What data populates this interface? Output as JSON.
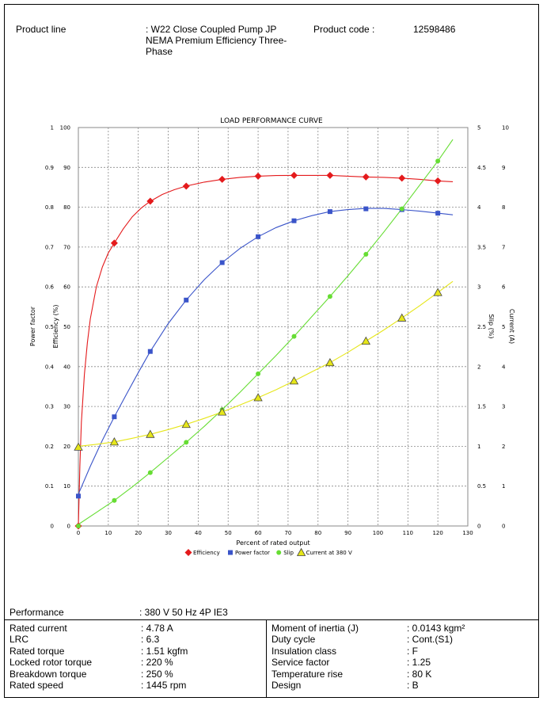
{
  "header": {
    "product_line_label": "Product line",
    "product_line_value": ": W22 Close Coupled Pump JP NEMA Premium Efficiency Three-Phase",
    "product_line_lines": [
      ": W22 Close Coupled Pump JP",
      "NEMA Premium Efficiency Three-",
      "Phase"
    ],
    "product_code_label": "Product code :",
    "product_code_value": "12598486"
  },
  "chart_data": {
    "type": "line",
    "title": "LOAD PERFORMANCE CURVE",
    "xlabel": "Percent of rated output",
    "xlim": [
      0,
      130
    ],
    "x_ticks": [
      "0",
      "10",
      "20",
      "30",
      "40",
      "50",
      "60",
      "70",
      "80",
      "90",
      "100",
      "110",
      "120",
      "130"
    ],
    "axes": {
      "power_factor": {
        "label": "Power factor",
        "range": [
          0,
          1
        ],
        "ticks": [
          "0",
          "0.1",
          "0.2",
          "0.3",
          "0.4",
          "0.5",
          "0.6",
          "0.7",
          "0.8",
          "0.9",
          "1"
        ]
      },
      "efficiency": {
        "label": "Efficiency (%)",
        "range": [
          0,
          100
        ],
        "ticks": [
          "0",
          "10",
          "20",
          "30",
          "40",
          "50",
          "60",
          "70",
          "80",
          "90",
          "100"
        ]
      },
      "slip": {
        "label": "Slip (%)",
        "range": [
          0,
          5
        ],
        "ticks": [
          "0",
          "0.5",
          "1",
          "1.5",
          "2",
          "2.5",
          "3",
          "3.5",
          "4",
          "4.5",
          "5"
        ]
      },
      "current": {
        "label": "Current (A)",
        "range": [
          0,
          10
        ],
        "ticks": [
          "0",
          "1",
          "2",
          "3",
          "4",
          "5",
          "6",
          "7",
          "8",
          "9",
          "10"
        ]
      }
    },
    "grid": true,
    "legend_position": "bottom",
    "series": [
      {
        "name": "Efficiency",
        "axis": "efficiency",
        "color": "#e41a1c",
        "marker": "diamond",
        "x": [
          0,
          12,
          24,
          36,
          48,
          60,
          72,
          84,
          96,
          108,
          120
        ],
        "y": [
          0,
          71,
          81.5,
          85.3,
          87.0,
          87.8,
          88.0,
          88.0,
          87.6,
          87.3,
          86.6
        ],
        "curve_x": [
          0,
          0.5,
          1,
          2,
          3,
          4,
          6,
          8,
          10,
          12,
          15,
          18,
          21,
          24,
          28,
          32,
          36,
          42,
          48,
          54,
          60,
          66,
          72,
          78,
          84,
          90,
          96,
          102,
          108,
          114,
          120,
          125
        ],
        "curve_y": [
          0,
          15,
          26,
          38,
          46,
          52,
          60,
          65,
          68.5,
          71,
          74.6,
          77.6,
          79.8,
          81.5,
          83.2,
          84.4,
          85.3,
          86.3,
          87.0,
          87.5,
          87.8,
          87.95,
          88.0,
          88.0,
          88.0,
          87.8,
          87.6,
          87.5,
          87.3,
          87.0,
          86.6,
          86.4
        ]
      },
      {
        "name": "Power factor",
        "axis": "power_factor",
        "color": "#3a54c9",
        "marker": "square",
        "x": [
          0,
          12,
          24,
          36,
          48,
          60,
          72,
          84,
          96,
          108,
          120
        ],
        "y": [
          0.075,
          0.274,
          0.438,
          0.567,
          0.661,
          0.726,
          0.766,
          0.789,
          0.796,
          0.794,
          0.785
        ],
        "curve_x": [
          0,
          4,
          8,
          12,
          16,
          20,
          24,
          30,
          36,
          42,
          48,
          54,
          60,
          66,
          72,
          78,
          84,
          90,
          96,
          102,
          108,
          114,
          120,
          125
        ],
        "curve_y": [
          0.08,
          0.15,
          0.215,
          0.274,
          0.33,
          0.385,
          0.438,
          0.508,
          0.567,
          0.618,
          0.661,
          0.697,
          0.726,
          0.749,
          0.766,
          0.779,
          0.789,
          0.794,
          0.797,
          0.797,
          0.794,
          0.79,
          0.785,
          0.781
        ]
      },
      {
        "name": "Slip",
        "axis": "slip",
        "color": "#66dd33",
        "marker": "circle",
        "x": [
          0,
          12,
          24,
          36,
          48,
          60,
          72,
          84,
          96,
          108,
          120
        ],
        "y": [
          0,
          0.32,
          0.67,
          1.05,
          1.46,
          1.91,
          2.38,
          2.88,
          3.41,
          3.98,
          4.58
        ],
        "curve_x": [
          0,
          6,
          12,
          18,
          24,
          30,
          36,
          42,
          48,
          54,
          60,
          66,
          72,
          78,
          84,
          90,
          96,
          102,
          108,
          114,
          120,
          125
        ],
        "curve_y": [
          0.02,
          0.17,
          0.32,
          0.49,
          0.67,
          0.86,
          1.05,
          1.25,
          1.46,
          1.68,
          1.91,
          2.14,
          2.38,
          2.63,
          2.88,
          3.14,
          3.41,
          3.69,
          3.98,
          4.28,
          4.58,
          4.85
        ]
      },
      {
        "name": "Current at 380 V",
        "axis": "current",
        "color": "#e6e619",
        "marker": "triangle",
        "x": [
          0,
          12,
          24,
          36,
          48,
          60,
          72,
          84,
          96,
          108,
          120
        ],
        "y": [
          1.98,
          2.11,
          2.3,
          2.55,
          2.86,
          3.22,
          3.64,
          4.1,
          4.64,
          5.22,
          5.86
        ],
        "curve_x": [
          0,
          6,
          12,
          18,
          24,
          30,
          36,
          42,
          48,
          54,
          60,
          66,
          72,
          78,
          84,
          90,
          96,
          102,
          108,
          114,
          120,
          125
        ],
        "curve_y": [
          2.0,
          2.05,
          2.11,
          2.2,
          2.3,
          2.42,
          2.55,
          2.7,
          2.86,
          3.04,
          3.22,
          3.42,
          3.64,
          3.87,
          4.1,
          4.36,
          4.64,
          4.92,
          5.22,
          5.53,
          5.86,
          6.14
        ]
      }
    ]
  },
  "performance": {
    "label": "Performance",
    "value": ": 380 V 50 Hz 4P IE3",
    "left": [
      {
        "label": "Rated current",
        "value": ": 4.78 A"
      },
      {
        "label": "LRC",
        "value": ": 6.3"
      },
      {
        "label": "Rated torque",
        "value": ": 1.51 kgfm"
      },
      {
        "label": "Locked rotor torque",
        "value": ": 220 %"
      },
      {
        "label": "Breakdown torque",
        "value": ": 250 %"
      },
      {
        "label": "Rated speed",
        "value": ": 1445 rpm"
      }
    ],
    "right": [
      {
        "label": "Moment of inertia (J)",
        "value": ": 0.0143 kgm²"
      },
      {
        "label": "Duty cycle",
        "value": ": Cont.(S1)"
      },
      {
        "label": "Insulation class",
        "value": ": F"
      },
      {
        "label": "Service factor",
        "value": ": 1.25"
      },
      {
        "label": "Temperature rise",
        "value": ": 80 K"
      },
      {
        "label": "Design",
        "value": ": B"
      }
    ]
  }
}
